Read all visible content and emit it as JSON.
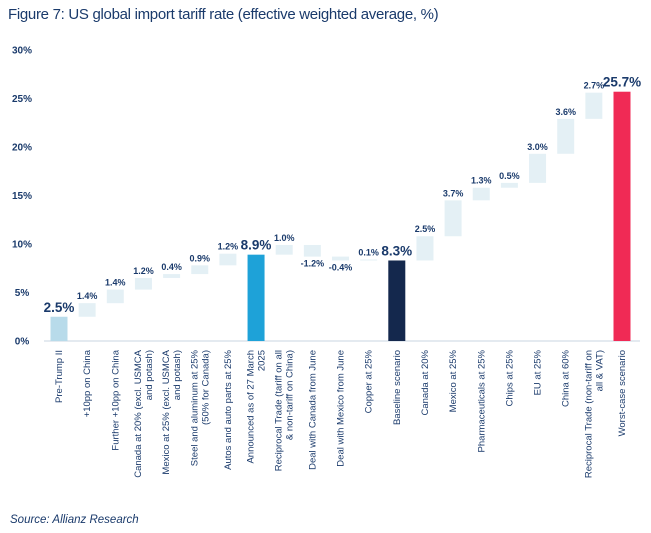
{
  "chart_data": {
    "type": "bar",
    "subtype": "waterfall",
    "title": "Figure 7: US global import tariff rate (effective weighted average, %)",
    "source": "Source: Allianz Research",
    "ylim": [
      0,
      30
    ],
    "yticks": [
      "0%",
      "5%",
      "10%",
      "15%",
      "20%",
      "25%",
      "30%"
    ],
    "grid": false,
    "legend": "none",
    "colors": {
      "start": "#b8dbea",
      "increase": "#e4f0f5",
      "decrease": "#e4f0f5",
      "subtotal_announced": "#1ea2d8",
      "subtotal_baseline": "#14284d",
      "total": "#f02a55",
      "text": "#1a3a6b"
    },
    "categories": [
      "Pre-Trump II",
      "+10pp on China",
      "Further +10pp on China",
      "Canada at 20% (excl. USMCA and potash)",
      "Mexico at 25% (excl. USMCA and potash)",
      "Steel and aluminum at 25% (50% for Canada)",
      "Autos and auto parts at 25%",
      "Announced as of 27 March 2025",
      "Reciprocal Trade (tariff on all & non-tariff on China)",
      "Deal with Canada from June",
      "Deal with Mexico from June",
      "Copper at 25%",
      "Baseline scenario",
      "Canada at 20%",
      "Mexico at 25%",
      "Pharmaceuticals at 25%",
      "Chips at 25%",
      "EU at 25%",
      "China at 60%",
      "Reciprocal Trade (non-tariff on all & VAT)",
      "Worst-case scenario"
    ],
    "category_lines": [
      [
        "Pre-Trump II"
      ],
      [
        "+10pp on China"
      ],
      [
        "Further +10pp on China"
      ],
      [
        "Canada at 20% (excl. USMCA",
        "and potash)"
      ],
      [
        "Mexico at 25% (excl. USMCA",
        "and potash)"
      ],
      [
        "Steel and aluminum at 25%",
        "(50% for Canada)"
      ],
      [
        "Autos and auto parts at 25%"
      ],
      [
        "Announced as of 27 March",
        "2025"
      ],
      [
        "Reciprocal Trade (tariff on all",
        "& non-tariff on China)"
      ],
      [
        "Deal with Canada from June"
      ],
      [
        "Deal with Mexico from June"
      ],
      [
        "Copper at 25%"
      ],
      [
        "Baseline scenario"
      ],
      [
        "Canada at 20%"
      ],
      [
        "Mexico at 25%"
      ],
      [
        "Pharmaceuticals at 25%"
      ],
      [
        "Chips at 25%"
      ],
      [
        "EU at 25%"
      ],
      [
        "China at 60%"
      ],
      [
        "Reciprocal Trade (non-tariff on",
        "all & VAT)"
      ],
      [
        "Worst-case scenario"
      ]
    ],
    "kinds": [
      "start",
      "delta",
      "delta",
      "delta",
      "delta",
      "delta",
      "delta",
      "subtotal_announced",
      "delta",
      "delta",
      "delta",
      "delta",
      "subtotal_baseline",
      "delta",
      "delta",
      "delta",
      "delta",
      "delta",
      "delta",
      "delta",
      "total"
    ],
    "values": [
      2.5,
      1.4,
      1.4,
      1.2,
      0.4,
      0.9,
      1.2,
      8.9,
      1.0,
      -1.2,
      -0.4,
      0.1,
      8.3,
      2.5,
      3.7,
      1.3,
      0.5,
      3.0,
      3.6,
      2.7,
      25.7
    ],
    "data_labels": [
      "2.5%",
      "1.4%",
      "1.4%",
      "1.2%",
      "0.4%",
      "0.9%",
      "1.2%",
      "8.9%",
      "1.0%",
      "-1.2%",
      "-0.4%",
      "0.1%",
      "8.3%",
      "2.5%",
      "3.7%",
      "1.3%",
      "0.5%",
      "3.0%",
      "3.6%",
      "2.7%",
      "25.7%"
    ]
  }
}
